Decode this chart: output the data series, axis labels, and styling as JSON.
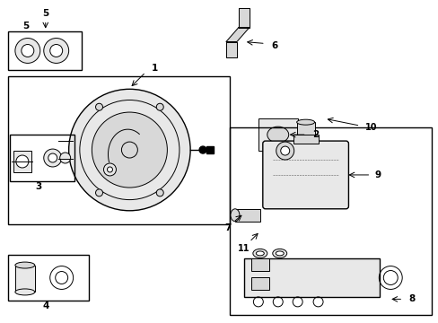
{
  "bg_color": "#ffffff",
  "line_color": "#000000",
  "light_gray": "#d8d8d8",
  "mid_gray": "#e8e8e8",
  "figsize": [
    4.89,
    3.6
  ],
  "dpi": 100
}
